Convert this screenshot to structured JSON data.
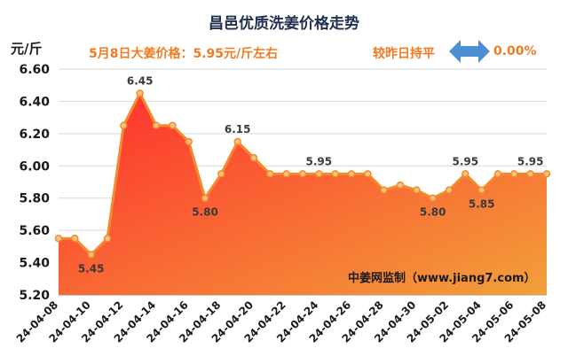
{
  "header": {
    "title": "昌邑优质洗姜价格走势",
    "unit": "元/斤",
    "price_note": "5月8日大姜价格：5.95元/斤左右",
    "compare_note": "较昨日持平",
    "change_value": "0.00%"
  },
  "icons": {
    "change_indicator": "left-right-arrow-icon"
  },
  "colors": {
    "line": "#f28a2e",
    "fill_top": "#ff2d2d",
    "fill_bottom": "#f2a03a",
    "text_accent": "#f07a22",
    "arrow": "#4d8fd6"
  },
  "watermark": "中姜网监制（www.jiang7.com）",
  "chart_data": {
    "type": "area",
    "title": "昌邑优质洗姜价格走势",
    "ylabel": "元/斤",
    "ylim": [
      5.2,
      6.6
    ],
    "y_ticks": [
      "5.20",
      "5.40",
      "5.60",
      "5.80",
      "6.00",
      "6.20",
      "6.40",
      "6.60"
    ],
    "grid": true,
    "x": [
      "24-04-08",
      "24-04-09",
      "24-04-10",
      "24-04-11",
      "24-04-12",
      "24-04-13",
      "24-04-14",
      "24-04-15",
      "24-04-16",
      "24-04-17",
      "24-04-18",
      "24-04-19",
      "24-04-20",
      "24-04-21",
      "24-04-22",
      "24-04-23",
      "24-04-24",
      "24-04-25",
      "24-04-26",
      "24-04-27",
      "24-04-28",
      "24-04-29",
      "24-04-30",
      "24-05-01",
      "24-05-02",
      "24-05-03",
      "24-05-04",
      "24-05-05",
      "24-05-06",
      "24-05-07",
      "24-05-08"
    ],
    "x_tick_labels": [
      "24-04-08",
      "24-04-10",
      "24-04-12",
      "24-04-14",
      "24-04-16",
      "24-04-18",
      "24-04-20",
      "24-04-22",
      "24-04-24",
      "24-04-26",
      "24-04-28",
      "24-04-30",
      "24-05-02",
      "24-05-04",
      "24-05-06",
      "24-05-08"
    ],
    "values": [
      5.55,
      5.55,
      5.45,
      5.55,
      6.25,
      6.45,
      6.25,
      6.25,
      6.15,
      5.8,
      5.95,
      6.15,
      6.05,
      5.95,
      5.95,
      5.95,
      5.95,
      5.95,
      5.95,
      5.95,
      5.85,
      5.88,
      5.85,
      5.8,
      5.85,
      5.95,
      5.85,
      5.95,
      5.95,
      5.95,
      5.95
    ],
    "data_labels": [
      {
        "index": 2,
        "text": "5.45"
      },
      {
        "index": 5,
        "text": "6.45"
      },
      {
        "index": 9,
        "text": "5.80"
      },
      {
        "index": 11,
        "text": "6.15"
      },
      {
        "index": 16,
        "text": "5.95"
      },
      {
        "index": 23,
        "text": "5.80"
      },
      {
        "index": 25,
        "text": "5.95"
      },
      {
        "index": 26,
        "text": "5.85"
      },
      {
        "index": 29,
        "text": "5.95"
      }
    ]
  }
}
